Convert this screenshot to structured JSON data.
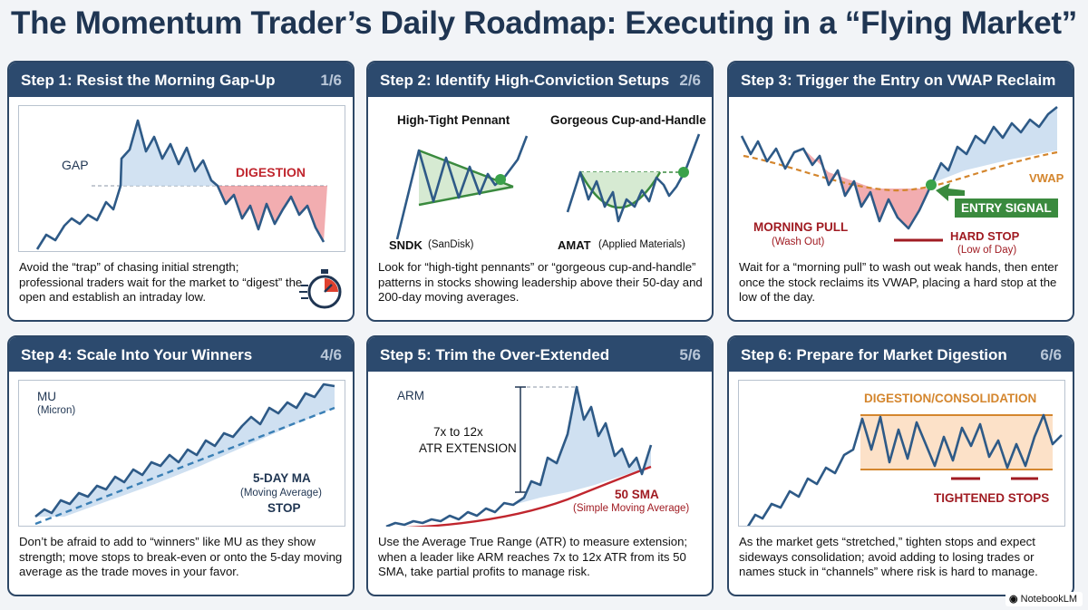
{
  "title": "The Momentum Trader’s Daily Roadmap: Executing in a “Flying Market”",
  "colors": {
    "navy": "#2c4a6e",
    "line": "#2e5a87",
    "red": "#c0262e",
    "green": "#3a8a3e",
    "orange": "#d4862e"
  },
  "steps": [
    {
      "title": "Step 1: Resist the Morning Gap-Up",
      "counter": "1/6",
      "labels": {
        "gap": "GAP",
        "digestion": "DIGESTION"
      },
      "description": "Avoid the “trap” of chasing initial strength; professional traders wait for the market to “digest” the open and establish an intraday low.",
      "icon": "stopwatch-icon"
    },
    {
      "title": "Step 2: Identify High-Conviction Setups",
      "counter": "2/6",
      "labels": {
        "pennant": "High-Tight Pennant",
        "cup": "Gorgeous Cup-and-Handle",
        "sndk_ticker": "SNDK",
        "sndk_name": "(SanDisk)",
        "amat_ticker": "AMAT",
        "amat_name": "(Applied Materials)"
      },
      "description": "Look for “high-tight pennants” or “gorgeous cup-and-handle” patterns in stocks showing leadership above their 50-day and 200-day moving averages."
    },
    {
      "title": "Step 3: Trigger the Entry on VWAP Reclaim",
      "counter": "3/6",
      "labels": {
        "vwap": "VWAP",
        "entry": "ENTRY SIGNAL",
        "morning_pull": "MORNING PULL",
        "wash_out": "(Wash Out)",
        "hard_stop": "HARD STOP",
        "low_of_day": "(Low of Day)"
      },
      "description": "Wait for a “morning pull” to wash out weak hands, then enter once the stock reclaims its VWAP, placing a hard stop at the low of the day."
    },
    {
      "title": "Step 4: Scale Into Your Winners",
      "counter": "4/6",
      "labels": {
        "ticker": "MU",
        "name": "(Micron)",
        "ma": "5-DAY MA",
        "ma_sub": "(Moving Average)",
        "stop": "STOP"
      },
      "description": "Don’t be afraid to add to “winners” like MU as they show strength; move stops to break-even or onto the 5-day moving average as the trade moves in your favor."
    },
    {
      "title": "Step 5: Trim the Over-Extended",
      "counter": "5/6",
      "labels": {
        "ticker": "ARM",
        "atr1": "7x to 12x",
        "atr2": "ATR EXTENSION",
        "sma": "50 SMA",
        "sma_sub": "(Simple Moving Average)"
      },
      "description": "Use the Average True Range (ATR) to measure extension; when a leader like ARM reaches 7x to 12x ATR from its 50 SMA, take partial profits to manage risk."
    },
    {
      "title": "Step 6: Prepare for Market Digestion",
      "counter": "6/6",
      "labels": {
        "channel": "DIGESTION/CONSOLIDATION",
        "stops": "TIGHTENED STOPS"
      },
      "description": "As the market gets “stretched,” tighten stops and expect sideways consolidation; avoid adding to losing trades or names stuck in “channels” where risk is hard to manage."
    }
  ],
  "watermark": "NotebookLM"
}
